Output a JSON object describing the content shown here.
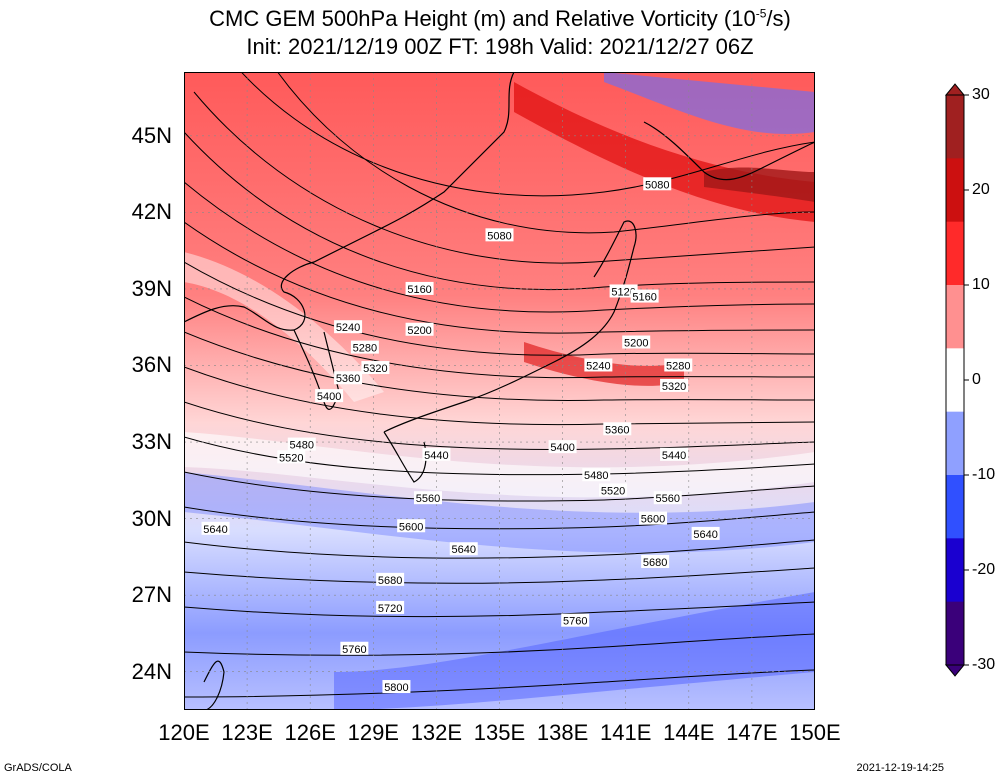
{
  "title": {
    "line1_prefix": "CMC GEM 500hPa Height (m) and Relative Vorticity (10",
    "line1_sup": "-5",
    "line1_suffix": "/s)",
    "line2": "Init: 2021/12/19 00Z  FT: 198h  Valid: 2021/12/27 06Z"
  },
  "map": {
    "lon_range": [
      120,
      150
    ],
    "lat_range": [
      22.5,
      47.5
    ],
    "lat_ticks": [
      "45N",
      "42N",
      "39N",
      "36N",
      "33N",
      "30N",
      "27N",
      "24N"
    ],
    "lat_values": [
      45,
      42,
      39,
      36,
      33,
      30,
      27,
      24
    ],
    "lon_ticks": [
      "120E",
      "123E",
      "126E",
      "129E",
      "132E",
      "135E",
      "138E",
      "141E",
      "144E",
      "147E",
      "150E"
    ],
    "lon_values": [
      120,
      123,
      126,
      129,
      132,
      135,
      138,
      141,
      144,
      147,
      150
    ],
    "contour_labels": [
      {
        "text": "5080",
        "lon": 135.0,
        "lat": 41.1
      },
      {
        "text": "5080",
        "lon": 142.5,
        "lat": 43.1
      },
      {
        "text": "5120",
        "lon": 140.9,
        "lat": 38.9
      },
      {
        "text": "5160",
        "lon": 131.2,
        "lat": 39.0
      },
      {
        "text": "5160",
        "lon": 141.9,
        "lat": 38.7
      },
      {
        "text": "5200",
        "lon": 131.2,
        "lat": 37.4
      },
      {
        "text": "5200",
        "lon": 141.5,
        "lat": 36.9
      },
      {
        "text": "5240",
        "lon": 127.8,
        "lat": 37.5
      },
      {
        "text": "5240",
        "lon": 139.7,
        "lat": 36.0
      },
      {
        "text": "5280",
        "lon": 128.6,
        "lat": 36.7
      },
      {
        "text": "5280",
        "lon": 143.5,
        "lat": 36.0
      },
      {
        "text": "5320",
        "lon": 129.1,
        "lat": 35.9
      },
      {
        "text": "5320",
        "lon": 143.3,
        "lat": 35.2
      },
      {
        "text": "5360",
        "lon": 127.8,
        "lat": 35.5
      },
      {
        "text": "5360",
        "lon": 140.6,
        "lat": 33.5
      },
      {
        "text": "5400",
        "lon": 126.9,
        "lat": 34.8
      },
      {
        "text": "5400",
        "lon": 138.0,
        "lat": 32.8
      },
      {
        "text": "5440",
        "lon": 132.0,
        "lat": 32.5
      },
      {
        "text": "5440",
        "lon": 143.3,
        "lat": 32.5
      },
      {
        "text": "5480",
        "lon": 125.6,
        "lat": 32.9
      },
      {
        "text": "5480",
        "lon": 139.6,
        "lat": 31.7
      },
      {
        "text": "5520",
        "lon": 125.1,
        "lat": 32.4
      },
      {
        "text": "5520",
        "lon": 140.4,
        "lat": 31.1
      },
      {
        "text": "5560",
        "lon": 131.6,
        "lat": 30.8
      },
      {
        "text": "5560",
        "lon": 143.0,
        "lat": 30.8
      },
      {
        "text": "5600",
        "lon": 130.8,
        "lat": 29.7
      },
      {
        "text": "5600",
        "lon": 142.3,
        "lat": 30.0
      },
      {
        "text": "5640",
        "lon": 121.5,
        "lat": 29.6
      },
      {
        "text": "5640",
        "lon": 133.3,
        "lat": 28.8
      },
      {
        "text": "5640",
        "lon": 144.8,
        "lat": 29.4
      },
      {
        "text": "5680",
        "lon": 129.8,
        "lat": 27.6
      },
      {
        "text": "5680",
        "lon": 142.4,
        "lat": 28.3
      },
      {
        "text": "5720",
        "lon": 129.8,
        "lat": 26.5
      },
      {
        "text": "5760",
        "lon": 128.1,
        "lat": 24.9
      },
      {
        "text": "5760",
        "lon": 138.6,
        "lat": 26.0
      },
      {
        "text": "5800",
        "lon": 130.1,
        "lat": 23.4
      }
    ]
  },
  "colorbar": {
    "ticks": [
      "30",
      "20",
      "10",
      "0",
      "-10",
      "-20",
      "-30"
    ],
    "values": [
      30,
      20,
      10,
      0,
      -10,
      -20,
      -30
    ],
    "colors": [
      "#3a007a",
      "#1a00d0",
      "#3050ff",
      "#8fa0ff",
      "#ffffff",
      "#ff9090",
      "#ff2a2a",
      "#cc1010",
      "#a02020"
    ]
  },
  "footer": {
    "left": "GrADS/COLA",
    "right": "2021-12-19-14:25"
  }
}
